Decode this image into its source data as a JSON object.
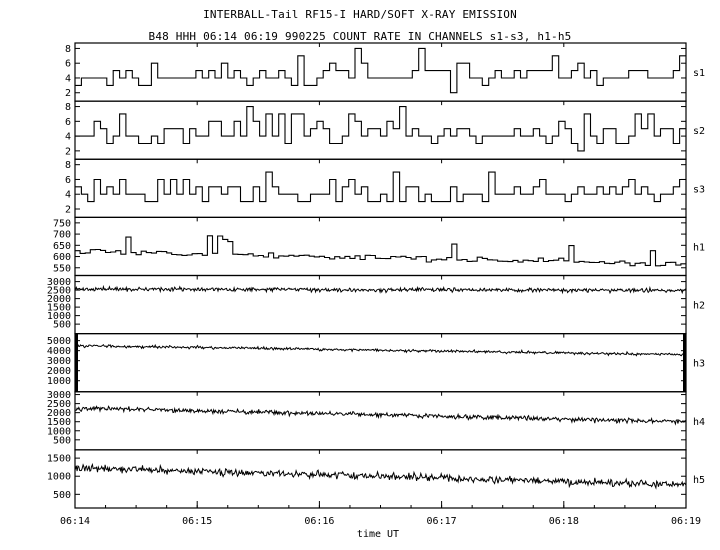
{
  "titles": {
    "line1": "INTERBALL-Tail RF15-I HARD/SOFT X-RAY EMISSION",
    "line2": "B48 HHH 06:14 06:19 990225  COUNT RATE IN CHANNELS s1-s3, h1-h5"
  },
  "chart_data": {
    "type": "line",
    "xlabel": "time UT",
    "x_ticks": [
      "06:14",
      "06:15",
      "06:16",
      "06:17",
      "06:18",
      "06:19"
    ],
    "x_range_minutes": [
      0,
      5
    ],
    "grid": false,
    "panels": [
      {
        "name": "s1",
        "ylim": [
          1,
          8.6
        ],
        "yticks": [
          2,
          4,
          6,
          8
        ],
        "ytick_labels": [
          "2",
          "4",
          "6",
          "8"
        ],
        "style": "step",
        "n": 96,
        "base": 4.2,
        "noise": 1.6,
        "spikes": 0.12,
        "spike_amp": 3.0,
        "min": 1.5,
        "max": 8.5,
        "seed": 11
      },
      {
        "name": "s2",
        "ylim": [
          1,
          8.6
        ],
        "yticks": [
          2,
          4,
          6,
          8
        ],
        "ytick_labels": [
          "2",
          "4",
          "6",
          "8"
        ],
        "style": "step",
        "n": 96,
        "base": 4.2,
        "noise": 1.6,
        "spikes": 0.1,
        "spike_amp": 3.0,
        "min": 1.5,
        "max": 8.5,
        "seed": 23
      },
      {
        "name": "s3",
        "ylim": [
          1,
          8.6
        ],
        "yticks": [
          2,
          4,
          6,
          8
        ],
        "ytick_labels": [
          "2",
          "4",
          "6",
          "8"
        ],
        "style": "step",
        "n": 96,
        "base": 4.0,
        "noise": 1.6,
        "spikes": 0.1,
        "spike_amp": 3.0,
        "min": 1.5,
        "max": 8.5,
        "seed": 37
      },
      {
        "name": "h1",
        "ylim": [
          520,
          770
        ],
        "yticks": [
          550,
          600,
          650,
          700,
          750
        ],
        "ytick_labels": [
          "550",
          "600",
          "650",
          "700",
          "750"
        ],
        "style": "step",
        "n": 120,
        "trend": [
          625,
          565
        ],
        "noise": 14,
        "spikes": 0.06,
        "spike_amp": 90,
        "min": 525,
        "max": 760,
        "seed": 5
      },
      {
        "name": "h2",
        "ylim": [
          0,
          3300
        ],
        "yticks": [
          500,
          1000,
          1500,
          2000,
          2500,
          3000
        ],
        "ytick_labels": [
          "500",
          "1000",
          "1500",
          "2000",
          "2500",
          "3000"
        ],
        "style": "noise",
        "n": 720,
        "trend": [
          2560,
          2480
        ],
        "noise": 110,
        "min": 0,
        "max": 3300,
        "seed": 71
      },
      {
        "name": "h3",
        "ylim": [
          0,
          5600
        ],
        "yticks": [
          1000,
          2000,
          3000,
          4000,
          5000
        ],
        "ytick_labels": [
          "1000",
          "2000",
          "3000",
          "4000",
          "5000"
        ],
        "style": "noise",
        "n": 720,
        "trend": [
          4500,
          3600
        ],
        "noise": 130,
        "min": 0,
        "max": 5600,
        "seed": 83
      },
      {
        "name": "h4",
        "ylim": [
          0,
          3100
        ],
        "yticks": [
          500,
          1000,
          1500,
          2000,
          2500,
          3000
        ],
        "ytick_labels": [
          "500",
          "1000",
          "1500",
          "2000",
          "2500",
          "3000"
        ],
        "style": "noise",
        "n": 720,
        "trend": [
          2250,
          1500
        ],
        "noise": 120,
        "min": 0,
        "max": 3100,
        "seed": 97
      },
      {
        "name": "h5",
        "ylim": [
          150,
          1700
        ],
        "yticks": [
          500,
          1000,
          1500
        ],
        "ytick_labels": [
          "500",
          "1000",
          "1500"
        ],
        "style": "noise",
        "n": 720,
        "trend": [
          1230,
          760
        ],
        "noise": 95,
        "min": 150,
        "max": 1700,
        "seed": 131
      }
    ]
  }
}
